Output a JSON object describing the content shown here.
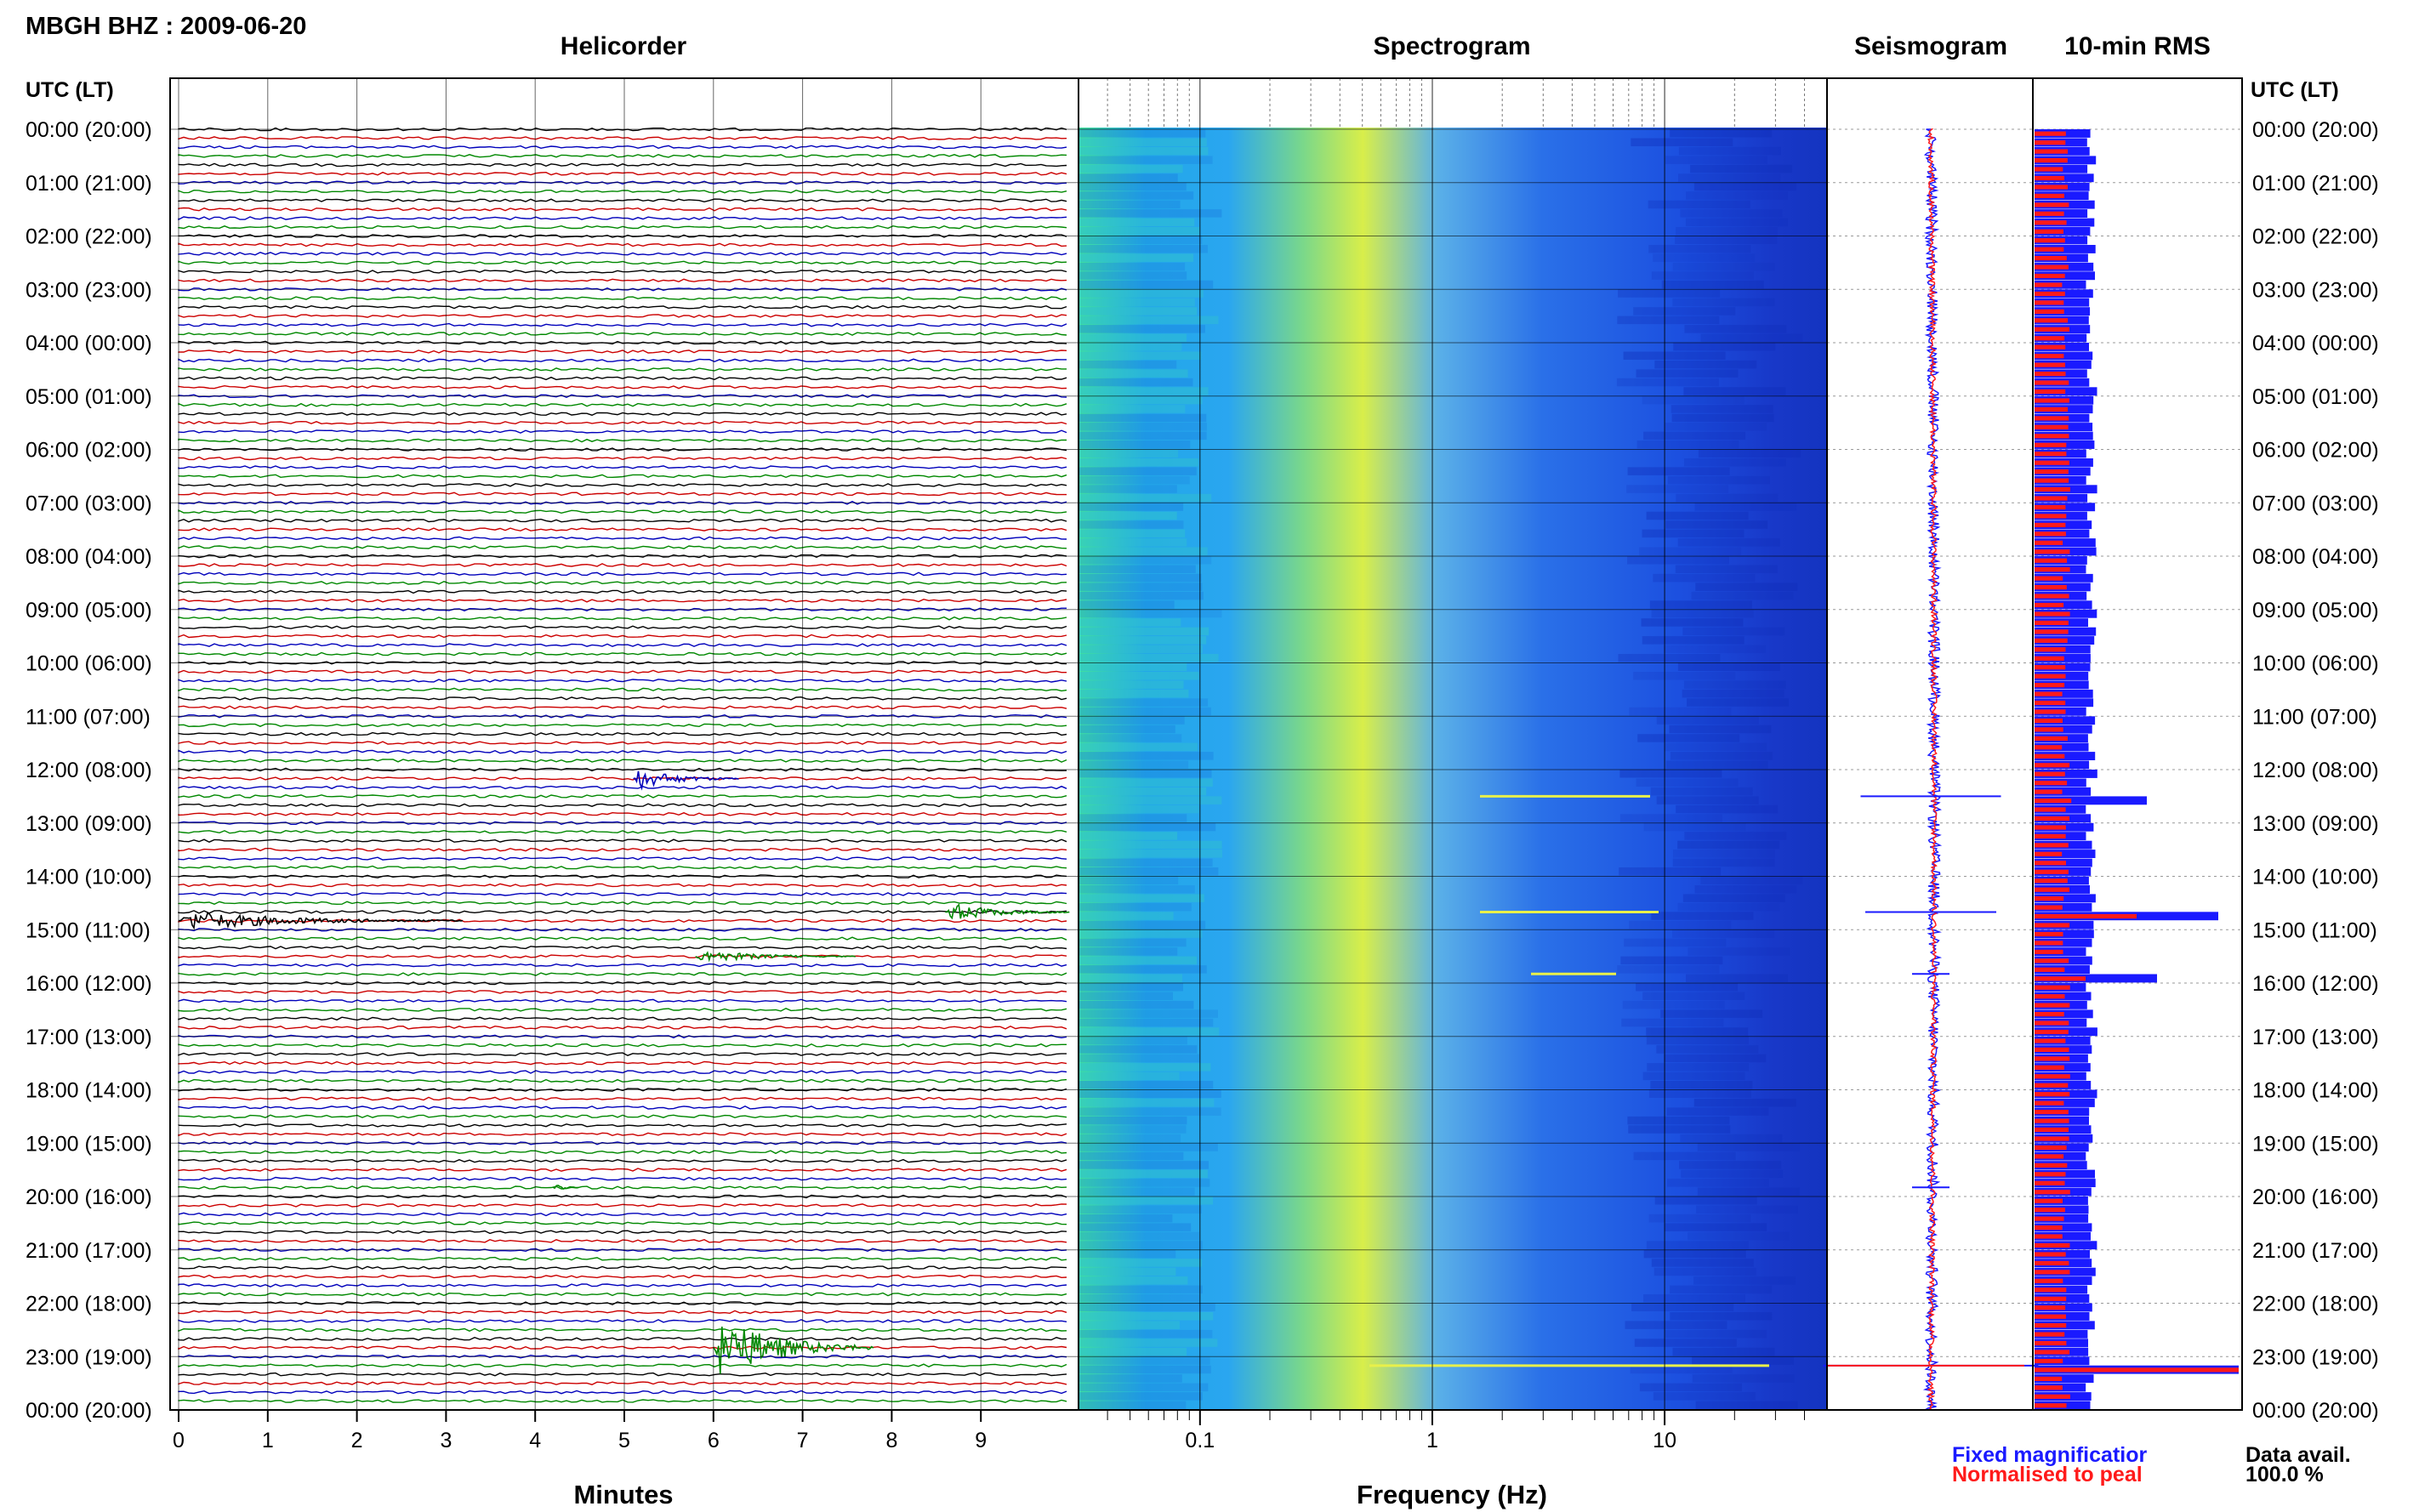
{
  "header": {
    "station": "MBGH BHZ : 2009-06-20",
    "panels": [
      "Helicorder",
      "Spectrogram",
      "Seismogram",
      "10-min RMS"
    ],
    "left_axis_title": "UTC (LT)",
    "right_axis_title": "UTC (LT)"
  },
  "footer": {
    "x_label_helicorder": "Minutes",
    "x_label_spectrogram": "Frequency (Hz)",
    "legend_fixed": "Fixed magnificatior",
    "legend_norm": "Normalised to peal",
    "data_avail_label": "Data avail.",
    "data_avail_value": "100.0 %"
  },
  "colors": {
    "fixed": "#1a1aff",
    "normalised": "#ff1a1a",
    "trace_colors": [
      "#000000",
      "#cc0000",
      "#0000bb",
      "#008800"
    ]
  },
  "chart_data": {
    "type": "helicorder",
    "time_labels": [
      "00:00 (20:00)",
      "01:00 (21:00)",
      "02:00 (22:00)",
      "03:00 (23:00)",
      "04:00 (00:00)",
      "05:00 (01:00)",
      "06:00 (02:00)",
      "07:00 (03:00)",
      "08:00 (04:00)",
      "09:00 (05:00)",
      "10:00 (06:00)",
      "11:00 (07:00)",
      "12:00 (08:00)",
      "13:00 (09:00)",
      "14:00 (10:00)",
      "15:00 (11:00)",
      "16:00 (12:00)",
      "17:00 (13:00)",
      "18:00 (14:00)",
      "19:00 (15:00)",
      "20:00 (16:00)",
      "21:00 (17:00)",
      "22:00 (18:00)",
      "23:00 (19:00)",
      "00:00 (20:00)"
    ],
    "minutes_ticks": [
      "0",
      "1",
      "2",
      "3",
      "4",
      "5",
      "6",
      "7",
      "8",
      "9"
    ],
    "frequency_ticks": [
      "0.1",
      "1",
      "10"
    ],
    "frequency_range_hz": [
      0.03,
      50
    ],
    "trace_minutes_per_row": 10,
    "rows_per_hour": 6,
    "events": [
      {
        "utc_hour": 12.17,
        "start_min": 5.1,
        "duration_min": 1.2,
        "amplitude": 1.0
      },
      {
        "utc_hour": 14.83,
        "start_min": 0.0,
        "duration_min": 3.2,
        "amplitude": 0.9
      },
      {
        "utc_hour": 14.67,
        "start_min": 8.6,
        "duration_min": 1.4,
        "amplitude": 0.9
      },
      {
        "utc_hour": 15.5,
        "start_min": 5.8,
        "duration_min": 1.8,
        "amplitude": 0.6
      },
      {
        "utc_hour": 19.83,
        "start_min": 4.2,
        "duration_min": 0.3,
        "amplitude": 0.4
      },
      {
        "utc_hour": 22.83,
        "start_min": 6.0,
        "duration_min": 1.8,
        "amplitude": 3.0
      }
    ],
    "rms_peaks": [
      {
        "utc_hour": 12.5,
        "fixed": 0.55,
        "normalised": 0.18
      },
      {
        "utc_hour": 14.67,
        "fixed": 0.9,
        "normalised": 0.5
      },
      {
        "utc_hour": 15.83,
        "fixed": 0.6,
        "normalised": 0.25
      },
      {
        "utc_hour": 23.17,
        "fixed": 1.0,
        "normalised": 1.0
      }
    ]
  }
}
